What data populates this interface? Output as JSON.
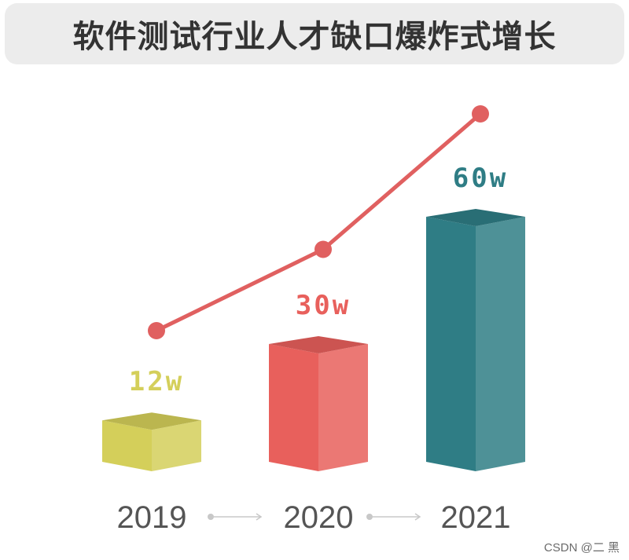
{
  "title": "软件测试行业人才缺口爆炸式增长",
  "watermark": "CSDN @二 黑",
  "chart_data": {
    "type": "bar",
    "categories": [
      "2019",
      "2020",
      "2021"
    ],
    "values": [
      12,
      30,
      60
    ],
    "data_labels": [
      "12w",
      "30w",
      "60w"
    ],
    "line_values": [
      12,
      30,
      60
    ],
    "colors": [
      "#d4cf5a",
      "#e8605c",
      "#2f7d85"
    ],
    "line_color": "#e06060",
    "label_colors": [
      "#d4cf5a",
      "#e8605c",
      "#2f7d85"
    ],
    "title": "软件测试行业人才缺口爆炸式增长",
    "xlabel": "",
    "ylabel": "",
    "grid": false,
    "legend": "none"
  }
}
